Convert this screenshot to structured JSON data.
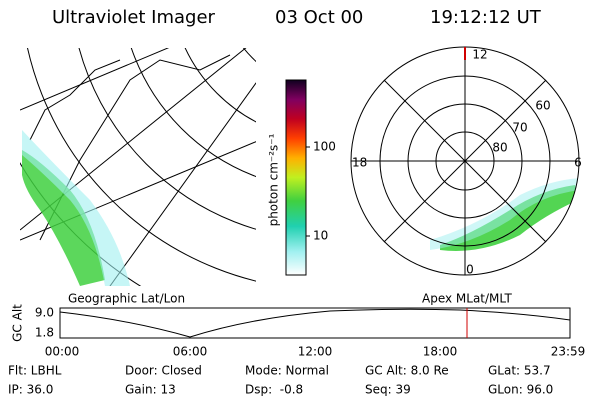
{
  "header": {
    "title": "Ultraviolet Imager",
    "date": "03 Oct 00",
    "time": "19:12:12 UT"
  },
  "map": {
    "label": "Geographic Lat/Lon"
  },
  "colorbar": {
    "unit": "photon cm⁻²s⁻¹",
    "ticks": [
      "100",
      "10"
    ]
  },
  "polar": {
    "label": "Apex MLat/MLT",
    "mlt": [
      "12",
      "18",
      "6",
      "0"
    ],
    "mlat": [
      "60",
      "70",
      "80"
    ]
  },
  "altitude": {
    "axis_label": "GC Alt",
    "ticks": [
      "9.0",
      "1.8"
    ],
    "times": [
      "00:00",
      "06:00",
      "12:00",
      "18:00",
      "23:59"
    ]
  },
  "footer": {
    "rows": [
      [
        "Flt: LBHL",
        "Door: Closed",
        "Mode: Normal",
        "GC Alt: 8.0 Re",
        "GLat: 53.7"
      ],
      [
        "IP: 36.0",
        "Gain: 13",
        "Dsp:  -0.8",
        "Seq: 39",
        "GLon: 96.0"
      ]
    ]
  }
}
